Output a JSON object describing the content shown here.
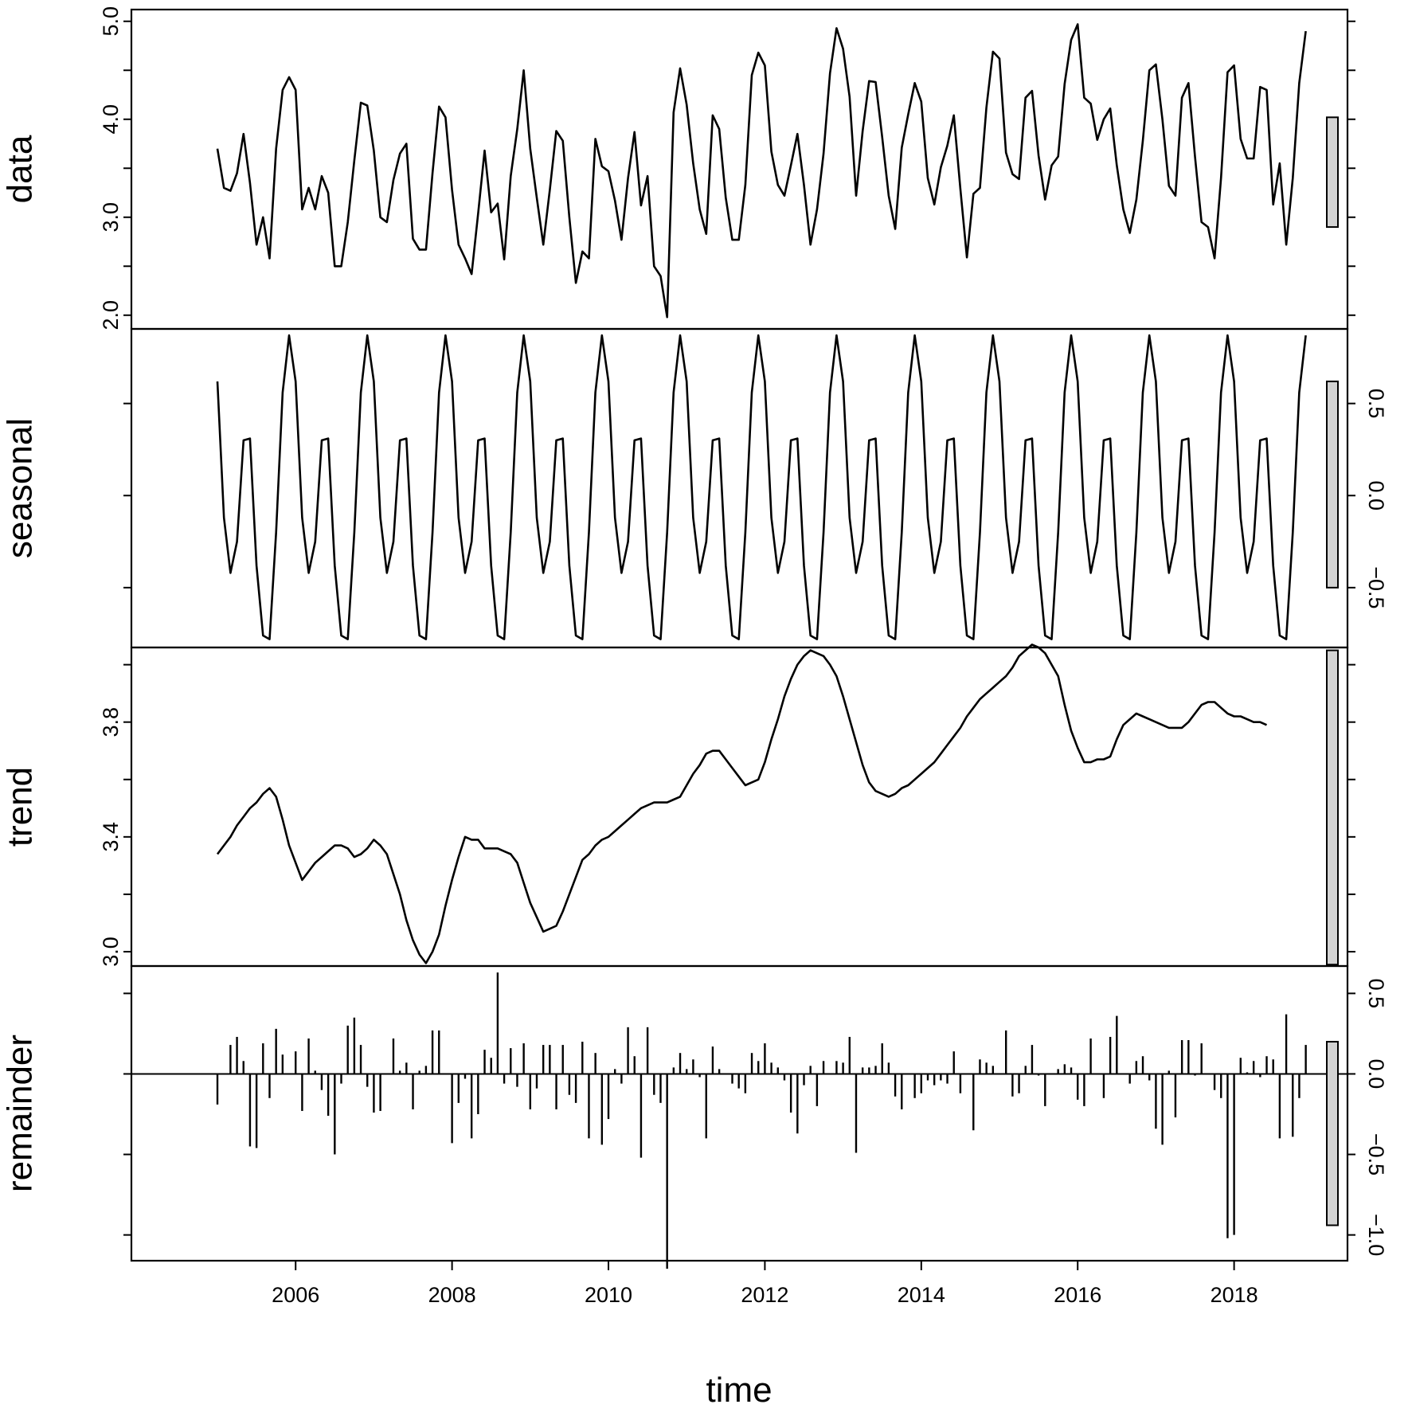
{
  "chart_data": {
    "type": "line",
    "xlabel": "time",
    "x_start": 2005.0,
    "x_step": 0.08333333,
    "x_ticks": [
      2006,
      2008,
      2010,
      2012,
      2014,
      2016,
      2018
    ],
    "x_tick_labels": [
      "2006",
      "2008",
      "2010",
      "2012",
      "2014",
      "2016",
      "2018"
    ],
    "x_range": [
      2003.9,
      2019.45
    ],
    "panels": [
      {
        "name": "data",
        "render": "line",
        "ylim": [
          1.86,
          5.12
        ],
        "major_ticks": [
          2.0,
          3.0,
          4.0,
          5.0
        ],
        "major_tick_labels": [
          "2.0",
          "3.0",
          "4.0",
          "5.0"
        ],
        "minor_ticks": [
          2.5,
          3.5,
          4.5
        ],
        "label_side": "left",
        "range_bar": [
          2.9,
          4.02
        ],
        "values": [
          3.7,
          3.3,
          3.27,
          3.45,
          3.85,
          3.35,
          2.72,
          3.0,
          2.58,
          3.7,
          4.3,
          4.43,
          4.3,
          3.08,
          3.3,
          3.08,
          3.42,
          3.25,
          2.5,
          2.5,
          2.95,
          3.58,
          4.17,
          4.14,
          3.68,
          3.0,
          2.95,
          3.38,
          3.65,
          3.75,
          2.78,
          2.67,
          2.67,
          3.45,
          4.13,
          4.02,
          3.28,
          2.72,
          2.58,
          2.42,
          3.04,
          3.68,
          3.05,
          3.14,
          2.57,
          3.42,
          3.9,
          4.5,
          3.7,
          3.2,
          2.72,
          3.28,
          3.88,
          3.78,
          3.0,
          2.33,
          2.65,
          2.58,
          3.8,
          3.52,
          3.47,
          3.17,
          2.77,
          3.4,
          3.87,
          3.12,
          3.42,
          2.5,
          2.4,
          1.98,
          4.07,
          4.52,
          4.15,
          3.55,
          3.08,
          2.83,
          4.04,
          3.9,
          3.2,
          2.77,
          2.77,
          3.33,
          4.45,
          4.68,
          4.55,
          3.67,
          3.33,
          3.22,
          3.53,
          3.85,
          3.33,
          2.72,
          3.08,
          3.65,
          4.47,
          4.93,
          4.72,
          4.23,
          3.22,
          3.88,
          4.39,
          4.38,
          3.82,
          3.22,
          2.88,
          3.71,
          4.05,
          4.37,
          4.18,
          3.4,
          3.13,
          3.51,
          3.73,
          4.04,
          3.29,
          2.59,
          3.24,
          3.3,
          4.12,
          4.69,
          4.62,
          3.66,
          3.44,
          3.39,
          4.22,
          4.29,
          3.63,
          3.18,
          3.53,
          3.62,
          4.36,
          4.81,
          4.97,
          4.22,
          4.16,
          3.79,
          4.0,
          4.11,
          3.53,
          3.08,
          2.84,
          3.18,
          3.78,
          4.5,
          4.56,
          4.0,
          3.32,
          3.22,
          4.22,
          4.37,
          3.62,
          2.95,
          2.9,
          2.58,
          3.4,
          4.48,
          4.55,
          3.8,
          3.6,
          3.6,
          4.33,
          4.3,
          3.13,
          3.55,
          2.72,
          3.4,
          4.37,
          4.9
        ]
      },
      {
        "name": "seasonal",
        "render": "line",
        "ylim": [
          -0.825,
          0.905
        ],
        "major_ticks": [
          -0.5,
          0.0,
          0.5
        ],
        "major_tick_labels": [
          "−0.5",
          "0.0",
          "0.5"
        ],
        "label_side": "right",
        "range_bar": [
          -0.5,
          0.62
        ],
        "pattern": [
          0.62,
          -0.12,
          -0.42,
          -0.25,
          0.3,
          0.31,
          -0.38,
          -0.76,
          -0.78,
          -0.2,
          0.56,
          0.87
        ],
        "years": 14
      },
      {
        "name": "trend",
        "render": "line",
        "ylim": [
          2.95,
          4.06
        ],
        "major_ticks": [
          3.0,
          3.4,
          3.8
        ],
        "major_tick_labels": [
          "3.0",
          "3.4",
          "3.8"
        ],
        "minor_ticks": [
          3.2,
          3.6,
          4.0
        ],
        "label_side": "left",
        "range_bar": [
          2.955,
          4.05
        ],
        "values": [
          3.34,
          3.37,
          3.4,
          3.44,
          3.47,
          3.5,
          3.52,
          3.55,
          3.57,
          3.54,
          3.46,
          3.37,
          3.31,
          3.25,
          3.28,
          3.31,
          3.33,
          3.35,
          3.37,
          3.37,
          3.36,
          3.33,
          3.34,
          3.36,
          3.39,
          3.37,
          3.34,
          3.27,
          3.2,
          3.11,
          3.04,
          2.99,
          2.96,
          3.0,
          3.06,
          3.16,
          3.25,
          3.33,
          3.4,
          3.39,
          3.39,
          3.36,
          3.36,
          3.36,
          3.35,
          3.34,
          3.31,
          3.24,
          3.17,
          3.12,
          3.07,
          3.08,
          3.09,
          3.14,
          3.2,
          3.26,
          3.32,
          3.34,
          3.37,
          3.39,
          3.4,
          3.42,
          3.44,
          3.46,
          3.48,
          3.5,
          3.51,
          3.52,
          3.52,
          3.52,
          3.53,
          3.54,
          3.58,
          3.62,
          3.65,
          3.69,
          3.7,
          3.7,
          3.67,
          3.64,
          3.61,
          3.58,
          3.59,
          3.6,
          3.66,
          3.74,
          3.81,
          3.89,
          3.95,
          4.0,
          4.03,
          4.05,
          4.04,
          4.03,
          4.0,
          3.96,
          3.89,
          3.81,
          3.73,
          3.65,
          3.59,
          3.56,
          3.55,
          3.54,
          3.55,
          3.57,
          3.58,
          3.6,
          3.62,
          3.64,
          3.66,
          3.69,
          3.72,
          3.75,
          3.78,
          3.82,
          3.85,
          3.88,
          3.9,
          3.92,
          3.94,
          3.96,
          3.99,
          4.03,
          4.05,
          4.07,
          4.06,
          4.04,
          4.0,
          3.96,
          3.86,
          3.77,
          3.71,
          3.66,
          3.66,
          3.67,
          3.67,
          3.68,
          3.74,
          3.79,
          3.81,
          3.83,
          3.82,
          3.81,
          3.8,
          3.79,
          3.78,
          3.78,
          3.78,
          3.8,
          3.83,
          3.86,
          3.87,
          3.87,
          3.85,
          3.83,
          3.82,
          3.82,
          3.81,
          3.8,
          3.8,
          3.79
        ]
      },
      {
        "name": "remainder",
        "render": "bar",
        "ylim": [
          -1.16,
          0.67
        ],
        "major_ticks": [
          -1.0,
          -0.5,
          0.0,
          0.5
        ],
        "major_tick_labels": [
          "−1.0",
          "−0.5",
          "0.0",
          "0.5"
        ],
        "label_side": "right",
        "range_bar": [
          -0.94,
          0.2
        ],
        "values": [
          -0.19,
          0.0,
          0.18,
          0.23,
          0.08,
          -0.45,
          -0.46,
          0.19,
          -0.15,
          0.28,
          0.12,
          0.0,
          0.14,
          -0.23,
          0.22,
          0.02,
          -0.1,
          -0.26,
          -0.5,
          -0.06,
          0.3,
          0.35,
          0.18,
          -0.08,
          -0.24,
          -0.23,
          0.0,
          0.22,
          0.02,
          0.07,
          -0.22,
          0.02,
          0.05,
          0.27,
          0.27,
          0.0,
          -0.43,
          -0.18,
          -0.03,
          -0.4,
          -0.25,
          0.15,
          0.1,
          0.63,
          -0.06,
          0.16,
          -0.08,
          0.19,
          -0.22,
          -0.09,
          0.18,
          0.18,
          -0.22,
          0.18,
          -0.13,
          -0.18,
          0.2,
          -0.4,
          0.13,
          -0.44,
          -0.28,
          0.03,
          -0.06,
          0.29,
          0.11,
          -0.52,
          0.29,
          -0.13,
          -0.18,
          -1.21,
          0.04,
          0.13,
          0.03,
          0.09,
          -0.02,
          -0.4,
          0.17,
          0.03,
          0.0,
          -0.06,
          -0.09,
          -0.12,
          0.13,
          0.08,
          0.19,
          0.07,
          0.04,
          -0.04,
          -0.24,
          -0.37,
          -0.07,
          0.05,
          -0.2,
          0.08,
          0.0,
          0.08,
          0.07,
          0.23,
          -0.49,
          0.04,
          0.04,
          0.05,
          0.19,
          0.07,
          -0.14,
          -0.22,
          0.0,
          -0.15,
          -0.12,
          -0.04,
          -0.07,
          -0.04,
          -0.06,
          0.14,
          -0.12,
          0.0,
          -0.35,
          0.09,
          0.07,
          0.05,
          0.0,
          0.27,
          -0.14,
          -0.12,
          0.05,
          0.18,
          -0.01,
          -0.2,
          0.0,
          0.03,
          0.06,
          0.04,
          -0.16,
          -0.2,
          0.22,
          0.0,
          -0.15,
          0.23,
          0.36,
          0.0,
          -0.06,
          0.08,
          0.11,
          -0.04,
          -0.34,
          -0.44,
          0.02,
          -0.27,
          0.21,
          0.21,
          -0.01,
          0.19,
          0.0,
          -0.1,
          -0.15,
          -1.02,
          -1.0,
          0.1,
          0.01,
          0.08,
          -0.02,
          0.11,
          0.09,
          -0.4,
          0.37,
          -0.39,
          -0.15,
          0.18
        ]
      }
    ]
  }
}
